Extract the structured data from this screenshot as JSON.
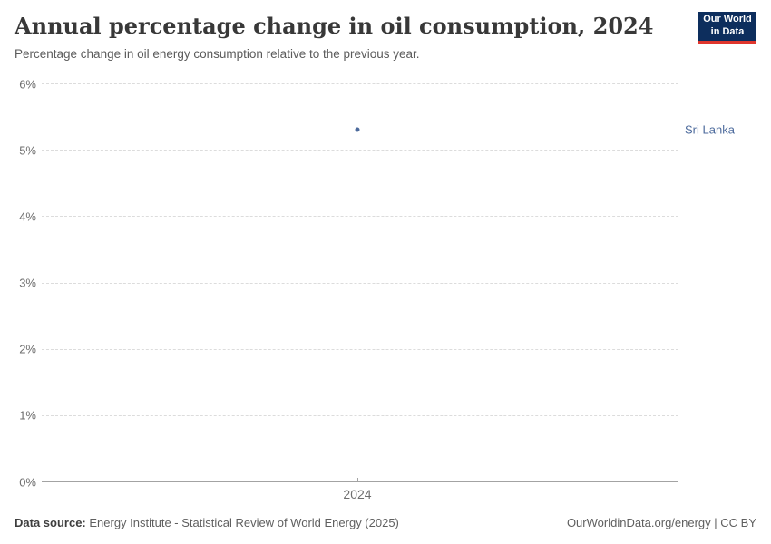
{
  "header": {
    "title": "Annual percentage change in oil consumption, 2024",
    "subtitle": "Percentage change in oil energy consumption relative to the previous year.",
    "logo_line1": "Our World",
    "logo_line2": "in Data"
  },
  "chart_data": {
    "type": "scatter",
    "title": "Annual percentage change in oil consumption, 2024",
    "subtitle": "Percentage change in oil energy consumption relative to the previous year.",
    "x": [
      2024
    ],
    "series": [
      {
        "name": "Sri Lanka",
        "values": [
          5.3
        ]
      }
    ],
    "xlabel": "",
    "ylabel": "",
    "ylim": [
      0,
      6
    ],
    "y_tick_values": [
      6,
      5,
      4,
      3,
      2,
      1,
      0
    ],
    "y_tick_labels": [
      "6%",
      "5%",
      "4%",
      "3%",
      "2%",
      "1%",
      "0%"
    ],
    "x_tick_labels": [
      "2024"
    ],
    "grid": "horizontal-dashed",
    "legend_position": "right-of-point",
    "entity_label": "Sri Lanka"
  },
  "colors": {
    "series": "#4c6a9c",
    "entity_label": "#4c6a9c",
    "logo_bg": "#0d2e5d",
    "logo_red": "#e0362d",
    "gridline": "#dcdcdc",
    "axis": "#a3a3a3"
  },
  "footer": {
    "source_label": "Data source:",
    "source_text": " Energy Institute - Statistical Review of World Energy (2025)",
    "credit": "OurWorldinData.org/energy | CC BY"
  }
}
